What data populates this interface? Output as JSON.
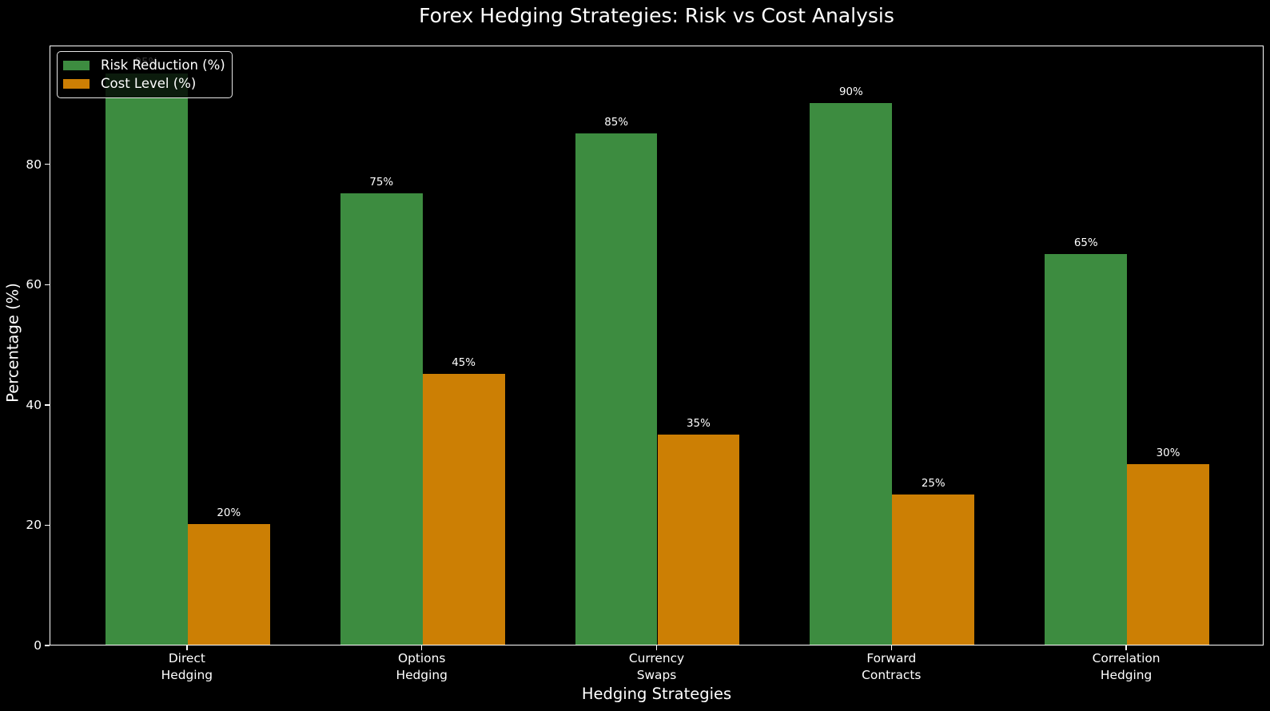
{
  "title": "Forex Hedging Strategies: Risk vs Cost Analysis",
  "chart_data": {
    "type": "bar",
    "categories": [
      [
        "Direct",
        "Hedging"
      ],
      [
        "Options",
        "Hedging"
      ],
      [
        "Currency",
        "Swaps"
      ],
      [
        "Forward",
        "Contracts"
      ],
      [
        "Correlation",
        "Hedging"
      ]
    ],
    "series": [
      {
        "name": "Risk Reduction (%)",
        "color": "#3d8c40",
        "values": [
          95,
          75,
          85,
          90,
          65
        ],
        "labels": [
          "95%",
          "75%",
          "85%",
          "90%",
          "65%"
        ]
      },
      {
        "name": "Cost Level (%)",
        "color": "#cc7f04",
        "values": [
          20,
          45,
          35,
          25,
          30
        ],
        "labels": [
          "20%",
          "45%",
          "35%",
          "25%",
          "30%"
        ]
      }
    ],
    "xlabel": "Hedging Strategies",
    "ylabel": "Percentage (%)",
    "yticks": [
      0,
      20,
      40,
      60,
      80
    ],
    "ylim": [
      0,
      99.75
    ],
    "legend_position": "upper left",
    "background": "#000000",
    "text_color": "#ffffff"
  }
}
